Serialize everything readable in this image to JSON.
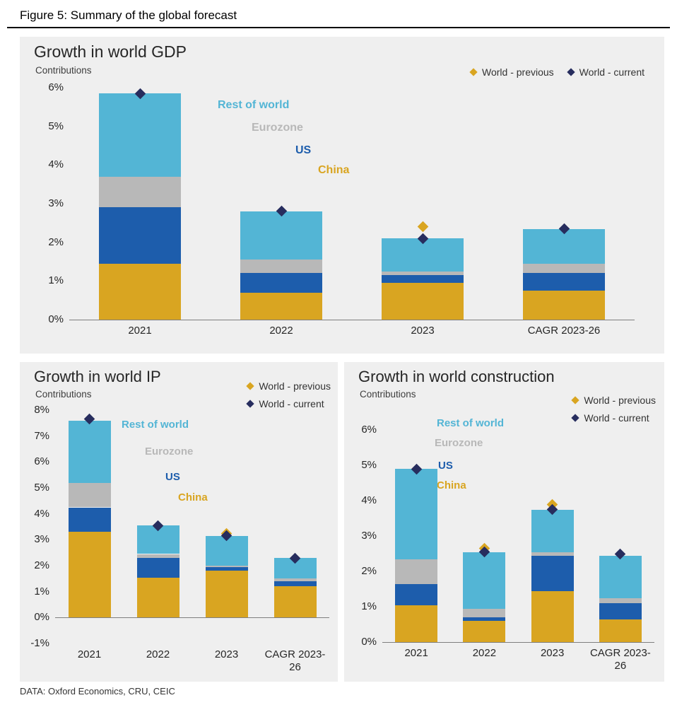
{
  "figure": {
    "title": "Figure 5: Summary of the global forecast",
    "source": "DATA: Oxford Economics, CRU, CEIC"
  },
  "colors": {
    "china": "#D9A521",
    "us": "#1D5DAC",
    "eurozone": "#B8B8B8",
    "rest_of_world": "#53B5D5",
    "world_previous": "#D9A521",
    "world_current": "#272D5E",
    "panel_background": "#EFEFEF"
  },
  "legend": {
    "previous_label": "World - previous",
    "current_label": "World - current"
  },
  "series_labels": {
    "rest_of_world": "Rest of world",
    "eurozone": "Eurozone",
    "us": "US",
    "china": "China"
  },
  "chart_data": [
    {
      "id": "world-gdp",
      "type": "bar",
      "stacked": true,
      "title": "Growth in world GDP",
      "subtitle": "Contributions",
      "categories": [
        "2021",
        "2022",
        "2023",
        "CAGR 2023-26"
      ],
      "ylim": [
        0,
        6
      ],
      "ytick_step": 1,
      "ytick_suffix": "%",
      "grid": false,
      "series": [
        {
          "name": "China",
          "color_key": "china",
          "values": [
            1.45,
            0.7,
            0.95,
            0.75
          ]
        },
        {
          "name": "US",
          "color_key": "us",
          "values": [
            1.45,
            0.5,
            0.2,
            0.45
          ]
        },
        {
          "name": "Eurozone",
          "color_key": "eurozone",
          "values": [
            0.8,
            0.35,
            0.1,
            0.25
          ]
        },
        {
          "name": "Rest of world",
          "color_key": "rest_of_world",
          "values": [
            2.15,
            1.25,
            0.85,
            0.9
          ]
        }
      ],
      "markers": [
        {
          "name": "World - previous",
          "color_key": "world_previous",
          "values": [
            null,
            null,
            2.4,
            null
          ]
        },
        {
          "name": "World - current",
          "color_key": "world_current",
          "values": [
            5.85,
            2.8,
            2.1,
            2.35
          ]
        }
      ]
    },
    {
      "id": "world-ip",
      "type": "bar",
      "stacked": true,
      "title": "Growth in world IP",
      "subtitle": "Contributions",
      "categories": [
        "2021",
        "2022",
        "2023",
        "CAGR 2023-26"
      ],
      "ylim": [
        -1,
        8
      ],
      "ytick_step": 1,
      "ytick_suffix": "%",
      "grid": false,
      "series": [
        {
          "name": "China",
          "color_key": "china",
          "values": [
            3.3,
            1.55,
            1.8,
            1.2
          ]
        },
        {
          "name": "US",
          "color_key": "us",
          "values": [
            0.95,
            0.75,
            0.15,
            0.2
          ]
        },
        {
          "name": "Eurozone",
          "color_key": "eurozone",
          "values": [
            0.95,
            0.15,
            0.05,
            0.1
          ]
        },
        {
          "name": "Rest of world",
          "color_key": "rest_of_world",
          "values": [
            2.4,
            1.1,
            1.15,
            0.8
          ]
        }
      ],
      "markers": [
        {
          "name": "World - previous",
          "color_key": "world_previous",
          "values": [
            null,
            null,
            3.25,
            null
          ]
        },
        {
          "name": "World - current",
          "color_key": "world_current",
          "values": [
            7.65,
            3.55,
            3.15,
            2.3
          ]
        }
      ]
    },
    {
      "id": "world-construction",
      "type": "bar",
      "stacked": true,
      "title": "Growth in world construction",
      "subtitle": "Contributions",
      "categories": [
        "2021",
        "2022",
        "2023",
        "CAGR 2023-26"
      ],
      "ylim": [
        0,
        6
      ],
      "ytick_step": 1,
      "ytick_suffix": "%",
      "grid": false,
      "series": [
        {
          "name": "China",
          "color_key": "china",
          "values": [
            1.05,
            0.6,
            1.45,
            0.65
          ]
        },
        {
          "name": "US",
          "color_key": "us",
          "values": [
            0.6,
            0.1,
            1.0,
            0.45
          ]
        },
        {
          "name": "Eurozone",
          "color_key": "eurozone",
          "values": [
            0.7,
            0.25,
            0.1,
            0.15
          ]
        },
        {
          "name": "Rest of world",
          "color_key": "rest_of_world",
          "values": [
            2.55,
            1.6,
            1.2,
            1.2
          ]
        }
      ],
      "markers": [
        {
          "name": "World - previous",
          "color_key": "world_previous",
          "values": [
            null,
            2.65,
            3.9,
            null
          ]
        },
        {
          "name": "World - current",
          "color_key": "world_current",
          "values": [
            4.9,
            2.55,
            3.75,
            2.5
          ]
        }
      ]
    }
  ]
}
